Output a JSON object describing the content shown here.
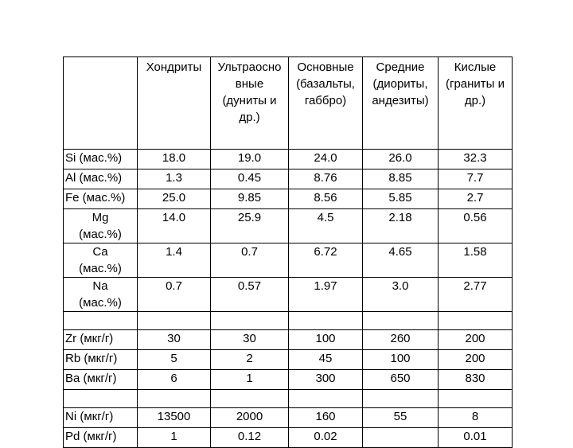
{
  "table": {
    "columns": [
      "",
      "Хондриты",
      "Ультраосно вные (дуниты и др.)",
      "Основные (базальты, габбро)",
      "Средние (диориты, андезиты)",
      "Кислые (граниты и др.)"
    ],
    "column_lines": [
      [],
      [
        "Хондриты"
      ],
      [
        "Ультраосно",
        "вные",
        "(дуниты и",
        "др.)"
      ],
      [
        "Основные",
        "(базальты,",
        "габбро)"
      ],
      [
        "Средние",
        "(диориты,",
        "андезиты)"
      ],
      [
        "Кислые",
        "(граниты и",
        "др.)"
      ]
    ],
    "rows": [
      {
        "label_lines": [
          "Si (мас.%)"
        ],
        "values": [
          "18.0",
          "19.0",
          "24.0",
          "26.0",
          "32.3"
        ]
      },
      {
        "label_lines": [
          "Al (мас.%)"
        ],
        "values": [
          "1.3",
          "0.45",
          "8.76",
          "8.85",
          "7.7"
        ]
      },
      {
        "label_lines": [
          "Fe (мас.%)"
        ],
        "values": [
          "25.0",
          "9.85",
          "8.56",
          "5.85",
          "2.7"
        ]
      },
      {
        "label_lines": [
          "Mg",
          "(мас.%)"
        ],
        "values": [
          "14.0",
          "25.9",
          "4.5",
          "2.18",
          "0.56"
        ]
      },
      {
        "label_lines": [
          "Ca",
          "(мас.%)"
        ],
        "values": [
          "1.4",
          "0.7",
          "6.72",
          "4.65",
          "1.58"
        ]
      },
      {
        "label_lines": [
          "Na",
          "(мас.%)"
        ],
        "values": [
          "0.7",
          "0.57",
          "1.97",
          "3.0",
          "2.77"
        ]
      },
      {
        "label_lines": [],
        "values": [
          "",
          "",
          "",
          "",
          ""
        ]
      },
      {
        "label_lines": [
          "Zr (мкг/г)"
        ],
        "values": [
          "30",
          "30",
          "100",
          "260",
          "200"
        ]
      },
      {
        "label_lines": [
          "Rb (мкг/г)"
        ],
        "values": [
          "5",
          "2",
          "45",
          "100",
          "200"
        ]
      },
      {
        "label_lines": [
          "Ba (мкг/г)"
        ],
        "values": [
          "6",
          "1",
          "300",
          "650",
          "830"
        ]
      },
      {
        "label_lines": [],
        "values": [
          "",
          "",
          "",
          "",
          ""
        ]
      },
      {
        "label_lines": [
          "Ni (мкг/г)"
        ],
        "values": [
          "13500",
          "2000",
          "160",
          "55",
          "8"
        ]
      },
      {
        "label_lines": [
          "Pd (мкг/г)"
        ],
        "values": [
          "1",
          "0.12",
          "0.02",
          "",
          "0.01"
        ]
      }
    ]
  }
}
